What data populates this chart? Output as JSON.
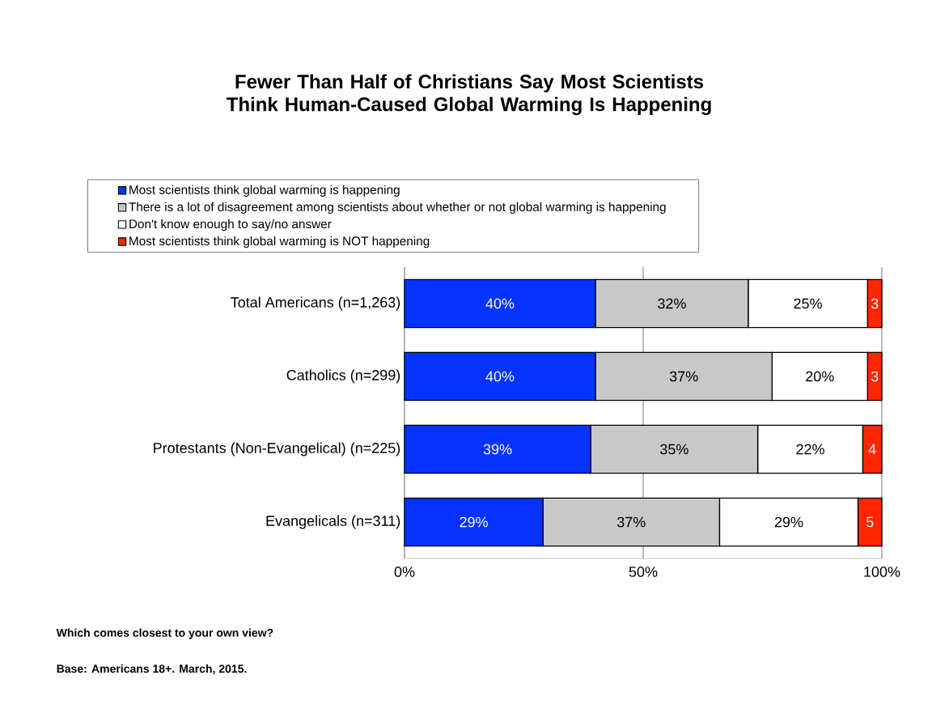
{
  "chart_data": {
    "type": "bar",
    "orientation": "horizontal",
    "stacked": true,
    "title": "Fewer Than Half of Christians Say Most Scientists Think Human-Caused Global Warming Is Happening",
    "categories": [
      "Total Americans (n=1,263)",
      "Catholics (n=299)",
      "Protestants (Non-Evangelical) (n=225)",
      "Evangelicals (n=311)"
    ],
    "series": [
      {
        "name": "Most scientists think global warming is happening",
        "color": "#0433ff",
        "values": [
          40,
          40,
          39,
          29
        ],
        "value_labels": [
          "40%",
          "40%",
          "39%",
          "29%"
        ]
      },
      {
        "name": "There is a lot of disagreement among scientists about whether or not global warming is happening",
        "color": "#c8c8c8",
        "values": [
          32,
          37,
          35,
          37
        ],
        "value_labels": [
          "32%",
          "37%",
          "35%",
          "37%"
        ]
      },
      {
        "name": "Don't know enough to say/no answer",
        "color": "#ffffff",
        "values": [
          25,
          20,
          22,
          29
        ],
        "value_labels": [
          "25%",
          "20%",
          "22%",
          "29%"
        ]
      },
      {
        "name": "Most scientists think global warming is NOT happening",
        "color": "#ff2600",
        "values": [
          3,
          3,
          4,
          5
        ],
        "value_labels": [
          "3",
          "3",
          "4",
          "5"
        ]
      }
    ],
    "xlim": [
      0,
      100
    ],
    "xticks": [
      {
        "value": 0,
        "label": "0%"
      },
      {
        "value": 50,
        "label": "50%"
      },
      {
        "value": 100,
        "label": "100%"
      }
    ],
    "grid": "x",
    "legend": "top",
    "annotations": [
      "Which comes closest to your own view?",
      "Base: Americans 18+. March, 2015."
    ]
  }
}
